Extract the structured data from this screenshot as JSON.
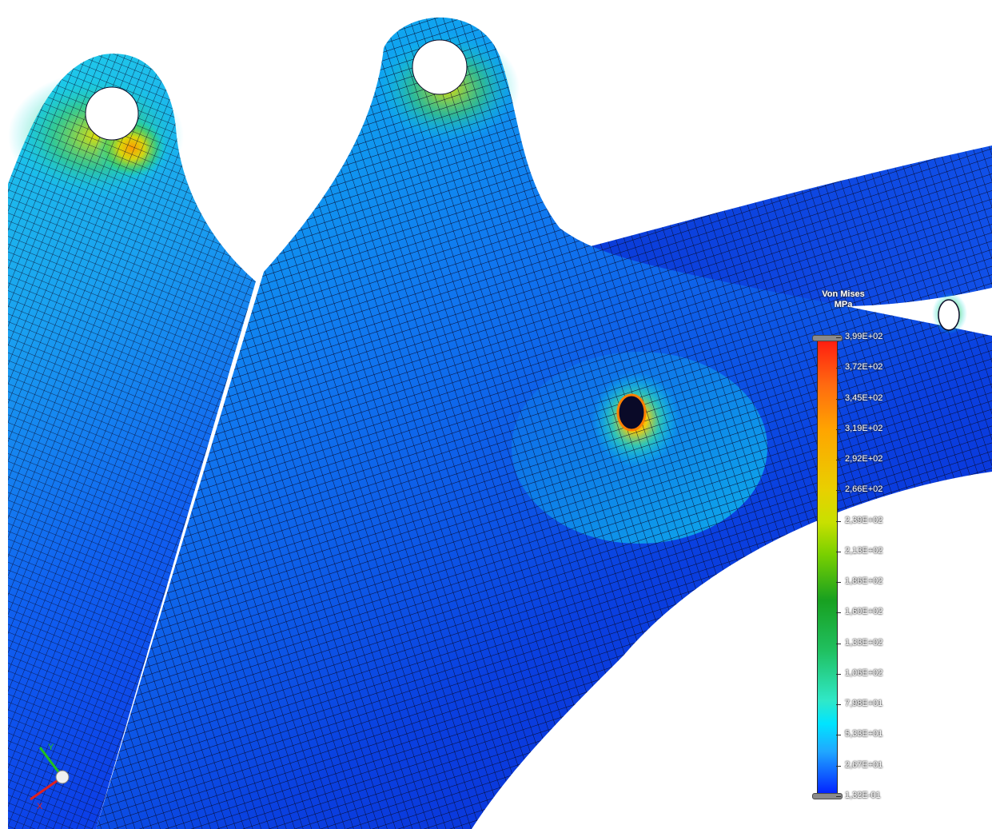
{
  "legend": {
    "title": "Von Mises",
    "unit": "MPa",
    "values": [
      "3,99E+02",
      "3,72E+02",
      "3,45E+02",
      "3,19E+02",
      "2,92E+02",
      "2,66E+02",
      "2,39E+02",
      "2,13E+02",
      "1,86E+02",
      "1,60E+02",
      "1,33E+02",
      "1,06E+02",
      "7,98E+01",
      "5,33E+01",
      "2,67E+01",
      "1,32E-01"
    ]
  },
  "axes": {
    "x": "X",
    "y": "Y"
  },
  "colors": {
    "low": "#0018ff",
    "mid": "#00e4ff",
    "high": "#ff1a10",
    "mesh": "#0a0a28"
  }
}
